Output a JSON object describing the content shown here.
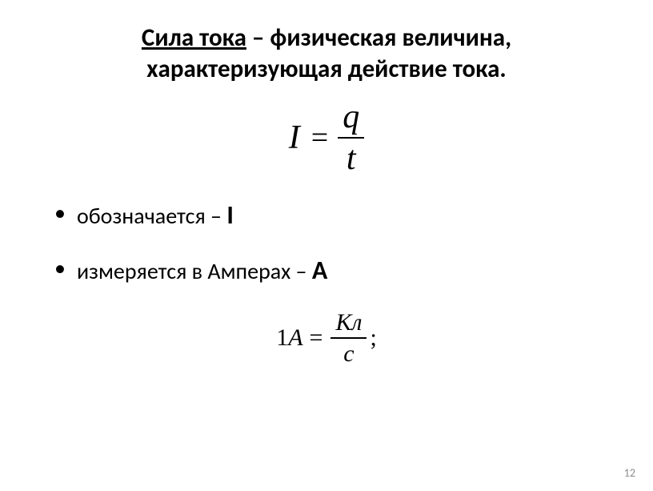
{
  "title": {
    "term": "Сила тока",
    "dash": " – ",
    "rest_line1": "физическая величина,",
    "line2": "характеризующая действие тока."
  },
  "formula_main": {
    "lhs": "I",
    "equals": "=",
    "numerator": "q",
    "denominator": "t"
  },
  "bullets": [
    {
      "text": "обозначается – ",
      "symbol": "I"
    },
    {
      "text": "измеряется в Амперах – ",
      "symbol": "А"
    }
  ],
  "formula_unit": {
    "one": "1",
    "A": "A",
    "equals": "=",
    "numerator": "Кл",
    "denominator": "с",
    "semicolon": ";"
  },
  "page_number": "12",
  "colors": {
    "text": "#000000",
    "background": "#ffffff",
    "pagenum": "#8b8b8b"
  }
}
